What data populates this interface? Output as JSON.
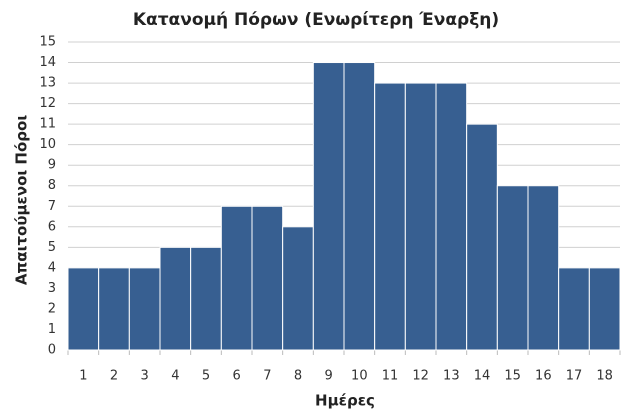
{
  "chart_data": {
    "type": "bar",
    "title": "Κατανομή Πόρων (Ενωρίτερη Έναρξη)",
    "x_label": "Ημέρες",
    "y_label": "Απαιτούμενοι Πόροι",
    "categories": [
      "1",
      "2",
      "3",
      "4",
      "5",
      "6",
      "7",
      "8",
      "9",
      "10",
      "11",
      "12",
      "13",
      "14",
      "15",
      "16",
      "17",
      "18"
    ],
    "values": [
      4,
      4,
      4,
      5,
      5,
      7,
      7,
      6,
      14,
      14,
      13,
      13,
      13,
      11,
      8,
      8,
      4,
      4
    ],
    "color": "#375f91",
    "ylim": [
      0,
      15
    ],
    "yticks": [
      0,
      1,
      2,
      3,
      4,
      5,
      6,
      7,
      8,
      9,
      10,
      11,
      12,
      13,
      14,
      15
    ],
    "grid": true
  }
}
